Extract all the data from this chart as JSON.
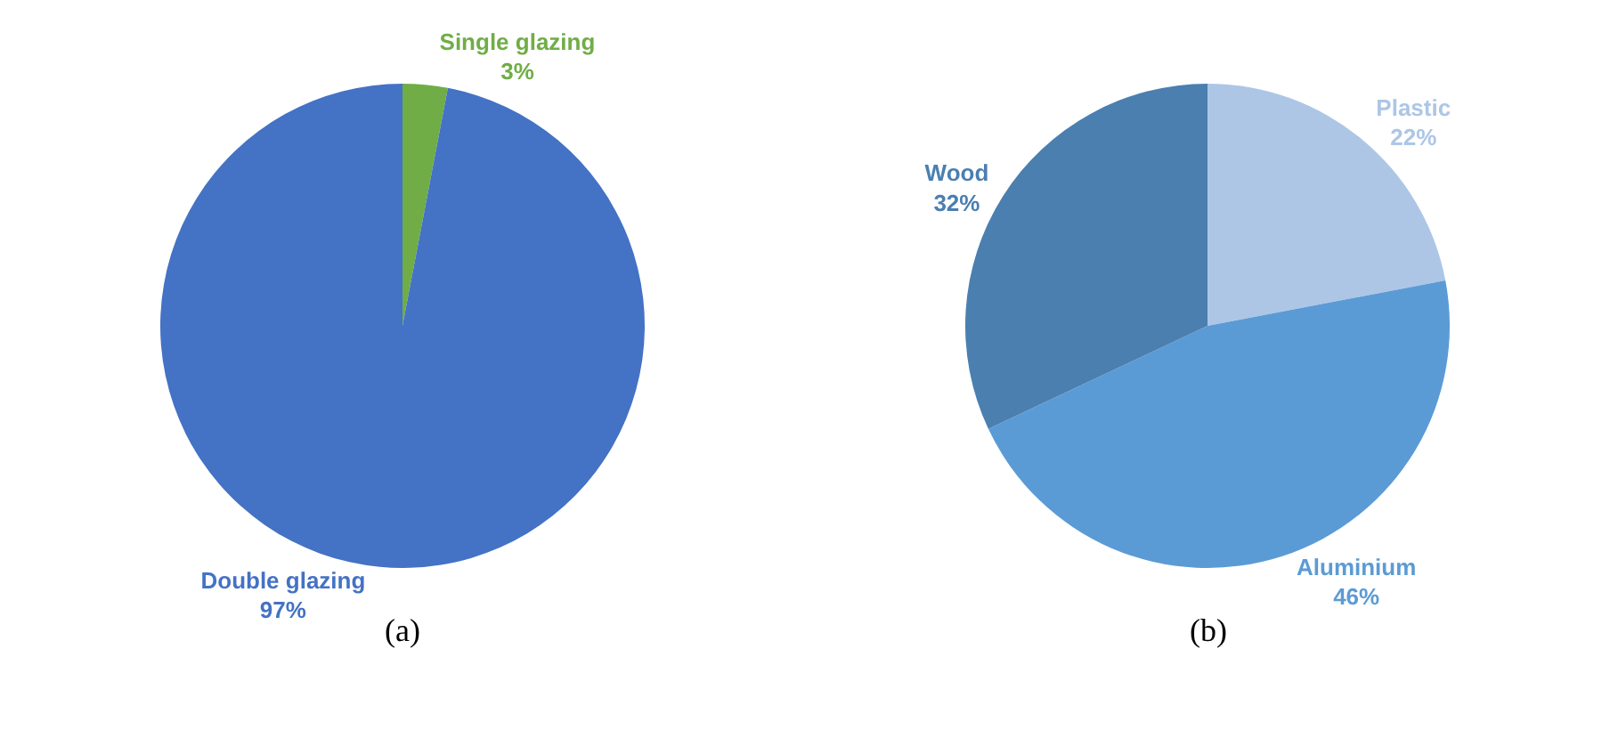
{
  "chart_data": [
    {
      "type": "pie",
      "categories": [
        "Single glazing",
        "Double glazing"
      ],
      "values": [
        3,
        97
      ],
      "colors": [
        "#70ad47",
        "#4472c4"
      ],
      "value_labels": [
        "3%",
        "97%"
      ],
      "annotations": [
        "(a)"
      ]
    },
    {
      "type": "pie",
      "categories": [
        "Plastic",
        "Aluminium",
        "Wood"
      ],
      "values": [
        22,
        46,
        32
      ],
      "colors": [
        "#adc6e6",
        "#5b9bd5",
        "#4a7fb0"
      ],
      "value_labels": [
        "22%",
        "46%",
        "32%"
      ],
      "annotations": [
        "(b)"
      ]
    }
  ]
}
